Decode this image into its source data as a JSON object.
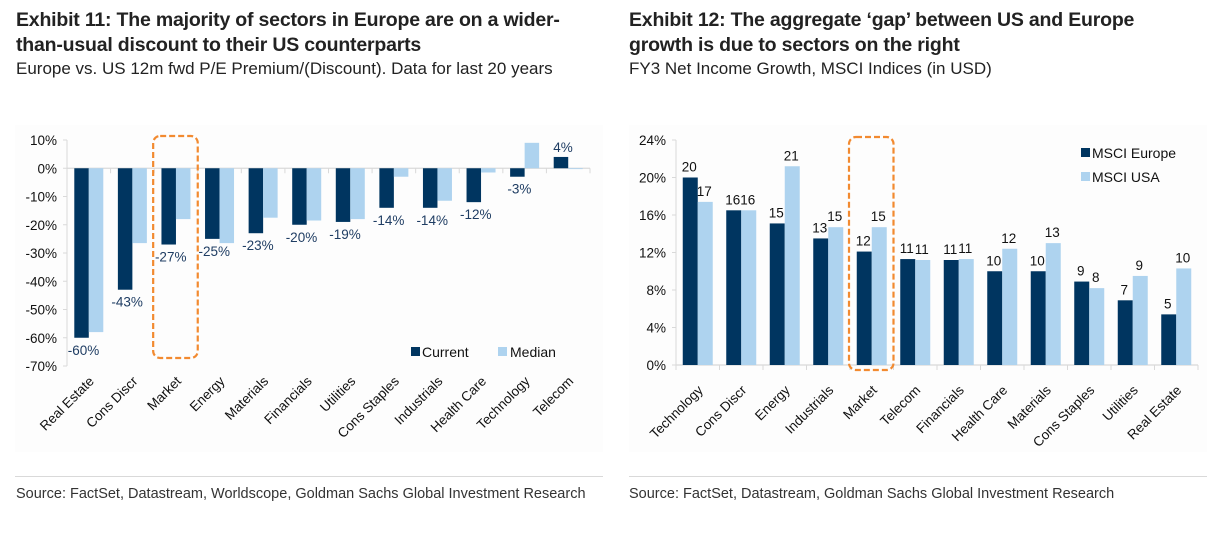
{
  "exhibits": [
    {
      "title": "Exhibit 11: The majority of sectors in Europe are on a wider-than-usual discount to their US counterparts",
      "subtitle": "Europe vs. US 12m fwd P/E Premium/(Discount). Data for last 20 years",
      "source": "Source: FactSet, Datastream, Worldscope, Goldman Sachs Global Investment Research"
    },
    {
      "title": "Exhibit 12: The aggregate ‘gap’ between US and Europe growth is due to sectors on the right",
      "subtitle": "FY3 Net Income Growth, MSCI Indices (in USD)",
      "source": "Source: FactSet, Datastream, Goldman Sachs Global Investment Research"
    }
  ],
  "colors": {
    "dark_series": "#003560",
    "light_series": "#aed3ef",
    "highlight": "#f28a30",
    "label_text": "#1f3d63",
    "axis_text": "#111111"
  },
  "chart_data": [
    {
      "type": "bar",
      "title": "Exhibit 11: The majority of sectors in Europe are on a wider-than-usual discount to their US counterparts",
      "subtitle": "Europe vs. US 12m fwd P/E Premium/(Discount). Data for last 20 years",
      "xlabel": "",
      "ylabel": "",
      "categories": [
        "Real Estate",
        "Cons Discr",
        "Market",
        "Energy",
        "Materials",
        "Financials",
        "Utilities",
        "Cons Staples",
        "Industrials",
        "Health Care",
        "Technology",
        "Telecom"
      ],
      "series": [
        {
          "name": "Current",
          "values": [
            -60,
            -43,
            -27,
            -25,
            -23,
            -20,
            -19,
            -14,
            -14,
            -12,
            -3,
            4
          ],
          "labels": [
            "-60%",
            "-43%",
            "-27%",
            "-25%",
            "-23%",
            "-20%",
            "-19%",
            "-14%",
            "-14%",
            "-12%",
            "-3%",
            "4%"
          ]
        },
        {
          "name": "Median",
          "values": [
            -58,
            -26.5,
            -18,
            -26.5,
            -17.5,
            -18.5,
            -18,
            -3,
            -11.5,
            -1.5,
            9,
            -0.3
          ]
        }
      ],
      "ylim": [
        -70,
        10
      ],
      "yticks": [
        10,
        0,
        -10,
        -20,
        -30,
        -40,
        -50,
        -60,
        -70
      ],
      "ytick_labels": [
        "10%",
        "0%",
        "-10%",
        "-20%",
        "-30%",
        "-40%",
        "-50%",
        "-60%",
        "-70%"
      ],
      "legend": {
        "position": "bottom-right",
        "entries": [
          "Current",
          "Median"
        ]
      },
      "highlight_category": "Market",
      "grid": false
    },
    {
      "type": "bar",
      "title": "Exhibit 12: The aggregate ‘gap’ between US and Europe growth is due to sectors on the right",
      "subtitle": "FY3 Net Income Growth, MSCI Indices (in USD)",
      "xlabel": "",
      "ylabel": "",
      "categories": [
        "Technology",
        "Cons Discr",
        "Energy",
        "Industrials",
        "Market",
        "Telecom",
        "Financials",
        "Health Care",
        "Materials",
        "Cons Staples",
        "Utilities",
        "Real Estate"
      ],
      "series": [
        {
          "name": "MSCI Europe",
          "values": [
            20.0,
            16.5,
            15.1,
            13.5,
            12.1,
            11.3,
            11.2,
            10.0,
            10.0,
            8.9,
            6.9,
            5.4
          ],
          "labels": [
            "20",
            "16",
            "15",
            "13",
            "12",
            "11",
            "11",
            "10",
            "10",
            "9",
            "7",
            "5"
          ]
        },
        {
          "name": "MSCI USA",
          "values": [
            17.4,
            16.5,
            21.2,
            14.7,
            14.7,
            11.2,
            11.3,
            12.4,
            13.0,
            8.2,
            9.5,
            10.3
          ],
          "labels": [
            "17",
            "16",
            "21",
            "15",
            "15",
            "11",
            "11",
            "12",
            "13",
            "8",
            "9",
            "10"
          ]
        }
      ],
      "ylim": [
        0,
        24
      ],
      "yticks": [
        24,
        20,
        16,
        12,
        8,
        4,
        0
      ],
      "ytick_labels": [
        "24%",
        "20%",
        "16%",
        "12%",
        "8%",
        "4%",
        "0%"
      ],
      "legend": {
        "position": "top-right",
        "entries": [
          "MSCI Europe",
          "MSCI USA"
        ]
      },
      "highlight_category": "Market",
      "grid": false
    }
  ]
}
